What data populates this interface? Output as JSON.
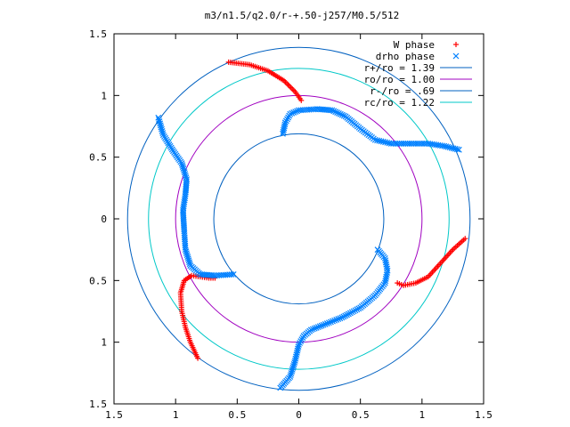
{
  "chart_data": {
    "type": "scatter",
    "title": "m3/n1.5/q2.0/r-+.50-j257/M0.5/512",
    "xlabel": "",
    "ylabel": "",
    "xlim": [
      -1.5,
      1.5
    ],
    "ylim": [
      -1.5,
      1.5
    ],
    "x_ticks": [
      -1.5,
      -1,
      -0.5,
      0,
      0.5,
      1,
      1.5
    ],
    "x_tick_labels": [
      "1.5",
      "1",
      "0.5",
      "0",
      "0.5",
      "1",
      "1.5"
    ],
    "y_ticks": [
      1.5,
      1,
      0.5,
      0,
      -0.5,
      -1,
      -1.5
    ],
    "y_tick_labels": [
      "1.5",
      "1",
      "0.5",
      "0",
      "0.5",
      "1",
      "1.5"
    ],
    "grid": false,
    "legend_position": "top-right",
    "legend": [
      {
        "label": "W phase",
        "marker": "+",
        "color": "#ff0000"
      },
      {
        "label": "drho phase",
        "marker": "x",
        "color": "#0080ff"
      },
      {
        "label": "r+/ro = 1.39",
        "marker": "line",
        "color": "#0060c0"
      },
      {
        "label": "ro/ro = 1.00",
        "marker": "line",
        "color": "#a000c0"
      },
      {
        "label": "r-/ro = .69",
        "marker": "line",
        "color": "#0060c0"
      },
      {
        "label": "rc/ro = 1.22",
        "marker": "line",
        "color": "#00c8c8"
      }
    ],
    "circles": [
      {
        "name": "r+/ro = 1.39",
        "radius": 1.39,
        "color": "#0060c0"
      },
      {
        "name": "ro/ro = 1.00",
        "radius": 1.0,
        "color": "#a000c0"
      },
      {
        "name": "r-/ro = .69",
        "radius": 0.69,
        "color": "#0060c0"
      },
      {
        "name": "rc/ro = 1.22",
        "radius": 1.22,
        "color": "#00c8c8"
      }
    ],
    "series": [
      {
        "name": "W phase",
        "marker": "+",
        "color": "#ff0000",
        "paths": [
          [
            [
              -0.57,
              1.27
            ],
            [
              -0.4,
              1.25
            ],
            [
              -0.25,
              1.2
            ],
            [
              -0.12,
              1.12
            ],
            [
              -0.03,
              1.03
            ],
            [
              0.02,
              0.96
            ]
          ],
          [
            [
              -0.82,
              -1.13
            ],
            [
              -0.88,
              -1.0
            ],
            [
              -0.92,
              -0.88
            ],
            [
              -0.95,
              -0.75
            ],
            [
              -0.96,
              -0.6
            ],
            [
              -0.93,
              -0.5
            ],
            [
              -0.87,
              -0.46
            ],
            [
              -0.8,
              -0.47
            ],
            [
              -0.73,
              -0.48
            ],
            [
              -0.68,
              -0.48
            ]
          ],
          [
            [
              1.35,
              -0.16
            ],
            [
              1.25,
              -0.25
            ],
            [
              1.15,
              -0.36
            ],
            [
              1.05,
              -0.47
            ],
            [
              0.95,
              -0.52
            ],
            [
              0.85,
              -0.54
            ],
            [
              0.8,
              -0.52
            ]
          ]
        ]
      },
      {
        "name": "drho phase",
        "marker": "x",
        "color": "#0080ff",
        "paths": [
          [
            [
              -0.13,
              0.69
            ],
            [
              -0.11,
              0.78
            ],
            [
              -0.07,
              0.85
            ],
            [
              0.0,
              0.88
            ],
            [
              0.15,
              0.89
            ],
            [
              0.27,
              0.88
            ],
            [
              0.38,
              0.83
            ],
            [
              0.5,
              0.73
            ],
            [
              0.62,
              0.64
            ],
            [
              0.75,
              0.61
            ],
            [
              0.9,
              0.61
            ],
            [
              1.05,
              0.61
            ],
            [
              1.18,
              0.59
            ],
            [
              1.3,
              0.56
            ]
          ],
          [
            [
              -1.14,
              0.82
            ],
            [
              -1.1,
              0.68
            ],
            [
              -1.02,
              0.55
            ],
            [
              -0.95,
              0.45
            ],
            [
              -0.91,
              0.32
            ],
            [
              -0.92,
              0.2
            ],
            [
              -0.94,
              0.07
            ],
            [
              -0.93,
              -0.1
            ],
            [
              -0.92,
              -0.25
            ],
            [
              -0.88,
              -0.38
            ],
            [
              -0.8,
              -0.45
            ],
            [
              -0.68,
              -0.46
            ],
            [
              -0.53,
              -0.45
            ]
          ],
          [
            [
              0.64,
              -0.25
            ],
            [
              0.7,
              -0.32
            ],
            [
              0.72,
              -0.42
            ],
            [
              0.7,
              -0.52
            ],
            [
              0.62,
              -0.62
            ],
            [
              0.5,
              -0.72
            ],
            [
              0.35,
              -0.8
            ],
            [
              0.2,
              -0.86
            ],
            [
              0.1,
              -0.9
            ],
            [
              0.04,
              -0.95
            ],
            [
              0.0,
              -1.02
            ],
            [
              -0.03,
              -1.15
            ],
            [
              -0.07,
              -1.28
            ],
            [
              -0.15,
              -1.37
            ]
          ]
        ]
      }
    ]
  }
}
